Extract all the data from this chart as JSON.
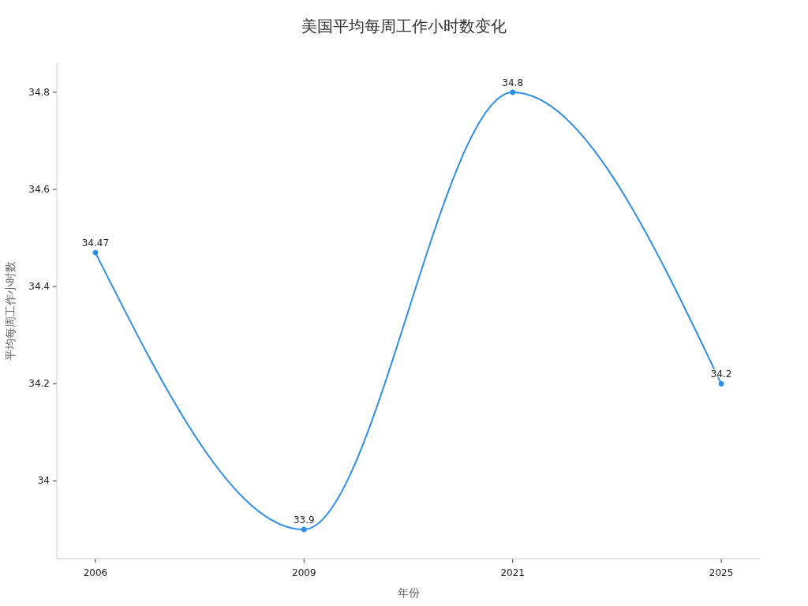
{
  "chart_data": {
    "type": "line",
    "title": "美国平均每周工作小时数变化",
    "xlabel": "年份",
    "ylabel": "平均每周工作小时数",
    "categories": [
      "2006",
      "2009",
      "2021",
      "2025"
    ],
    "series": [
      {
        "color": "#2f8de4",
        "values": [
          34.47,
          33.9,
          34.8,
          34.2
        ]
      }
    ],
    "ylim": [
      33.84,
      34.86
    ],
    "yticks": [
      34,
      34.2,
      34.4,
      34.6,
      34.8
    ],
    "data_labels": true,
    "marker": "circle",
    "line_style": "solid"
  }
}
